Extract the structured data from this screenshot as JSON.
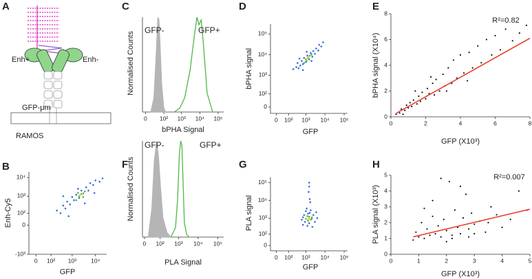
{
  "diagram": {
    "panel_label": "A",
    "labels": {
      "enh_plus": "Enh+",
      "enh_minus": "Enh-",
      "receptor": "GFP-μm",
      "cell": "RAMOS"
    }
  },
  "chart_data": [
    {
      "panel_label": "B",
      "type": "scatter",
      "xlabel": "GFP",
      "ylabel": "Enh-Cy5",
      "xscale": "symlog",
      "yscale": "symlog",
      "linthresh": 30,
      "xlim": [
        -30,
        30000
      ],
      "ylim": [
        -1000,
        20000
      ],
      "xticks": [
        0,
        {
          "value": 100,
          "label": "10²"
        },
        {
          "value": 1000,
          "label": "10³"
        },
        {
          "value": 10000,
          "label": "10⁴"
        }
      ],
      "yticks": [
        {
          "value": -1000,
          "label": "-10³"
        },
        0,
        {
          "value": 100,
          "label": "10²"
        },
        {
          "value": 1000,
          "label": "10³"
        },
        {
          "value": 10000,
          "label": "10⁴"
        }
      ],
      "series": [
        {
          "color": "#3a6fd8",
          "x": [
            200,
            300,
            400,
            500,
            600,
            800,
            1000,
            1200,
            1500,
            2000,
            2500,
            3000,
            4000,
            5000,
            6000,
            8000,
            10000,
            15000,
            700,
            3500,
            1800,
            400,
            20000,
            9000
          ],
          "values": [
            150,
            100,
            300,
            200,
            500,
            350,
            900,
            600,
            1200,
            800,
            2000,
            1400,
            3000,
            2000,
            5000,
            4000,
            7000,
            6000,
            60,
            400,
            2500,
            1000,
            9000,
            1500
          ]
        },
        {
          "color": "#4cb848",
          "x": [
            1500,
            2000,
            2500,
            3000,
            3500,
            1800
          ],
          "values": [
            600,
            1000,
            1300,
            900,
            1800,
            1500
          ]
        },
        {
          "color": "#e8d42a",
          "x": [
            2200,
            2800
          ],
          "values": [
            1100,
            1300
          ]
        }
      ]
    },
    {
      "panel_label": "C",
      "type": "line",
      "xlabel": "bPHA Signal",
      "ylabel": "Normalised Counts",
      "xscale": "symlog",
      "linthresh": 11,
      "xlim": [
        -5,
        200000
      ],
      "ylim": [
        0,
        100
      ],
      "xticks": [
        0,
        {
          "value": 100,
          "label": "10²"
        },
        {
          "value": 1000,
          "label": "10³"
        },
        {
          "value": 10000,
          "label": "10⁴"
        },
        {
          "value": 100000,
          "label": "10⁵"
        }
      ],
      "series": [
        {
          "name": "GFP-",
          "color": "#b5b5b5",
          "filled": true,
          "x": [
            10,
            20,
            30,
            40,
            50,
            60,
            75,
            100,
            130
          ],
          "values": [
            0,
            15,
            60,
            100,
            98,
            70,
            30,
            5,
            0
          ]
        },
        {
          "name": "GFP+",
          "color": "#4cb848",
          "filled": false,
          "x": [
            400,
            800,
            1500,
            3000,
            5000,
            7000,
            9000,
            12000,
            16000,
            25000,
            50000
          ],
          "values": [
            0,
            4,
            15,
            45,
            80,
            100,
            92,
            97,
            70,
            20,
            0
          ]
        }
      ]
    },
    {
      "panel_label": "D",
      "type": "scatter",
      "xlabel": "GFP",
      "ylabel": "bPHA signal",
      "xscale": "symlog",
      "yscale": "symlog",
      "linthresh": 30,
      "xlim": [
        -30,
        150000
      ],
      "ylim": [
        -30,
        300000
      ],
      "xticks": [
        0,
        {
          "value": 100,
          "label": "10²"
        },
        {
          "value": 1000,
          "label": "10³"
        },
        {
          "value": 10000,
          "label": "10⁴"
        },
        {
          "value": 100000,
          "label": "10⁵"
        }
      ],
      "yticks": [
        0,
        {
          "value": 100,
          "label": "10²"
        },
        {
          "value": 1000,
          "label": "10³"
        },
        {
          "value": 10000,
          "label": "10⁴"
        },
        {
          "value": 100000,
          "label": "10⁵"
        }
      ],
      "series": [
        {
          "color": "#3a6fd8",
          "x": [
            200,
            300,
            400,
            350,
            500,
            600,
            700,
            800,
            1000,
            1200,
            1500,
            1800,
            2200,
            2500,
            3000,
            3500,
            4500,
            5000,
            6500,
            8000,
            450,
            2000,
            1100,
            700
          ],
          "values": [
            2000,
            2500,
            2200,
            4000,
            3000,
            5000,
            3500,
            7000,
            4500,
            9000,
            6000,
            12000,
            8000,
            15000,
            11000,
            20000,
            16000,
            30000,
            25000,
            40000,
            6500,
            5000,
            14000,
            1800
          ]
        },
        {
          "color": "#4cb848",
          "x": [
            800,
            1000,
            1300,
            1600,
            1100,
            2000
          ],
          "values": [
            4000,
            6000,
            7000,
            9000,
            5000,
            10000
          ]
        },
        {
          "color": "#e8d42a",
          "x": [
            1100,
            1300,
            1500
          ],
          "values": [
            6000,
            7500,
            8000
          ]
        }
      ]
    },
    {
      "panel_label": "E",
      "type": "scatter",
      "xlabel": "GFP (X10³)",
      "ylabel": "bPHA signal (X10⁴)",
      "xlim": [
        0,
        8
      ],
      "ylim": [
        0,
        8
      ],
      "xticks": [
        0,
        2,
        4,
        6,
        8
      ],
      "yticks": [
        0,
        2,
        4,
        6,
        8
      ],
      "series": [
        {
          "color": "#111111",
          "x": [
            0.3,
            0.5,
            0.6,
            0.8,
            0.9,
            1.0,
            1.1,
            1.2,
            1.3,
            1.5,
            1.6,
            1.7,
            1.8,
            2.0,
            2.1,
            2.2,
            2.4,
            2.5,
            2.6,
            2.8,
            3.0,
            3.1,
            3.3,
            3.5,
            3.6,
            3.8,
            4.0,
            4.2,
            4.5,
            4.7,
            5.0,
            5.2,
            5.5,
            5.8,
            6.0,
            6.3,
            6.6,
            7.0,
            7.4,
            7.8,
            1.4,
            2.3,
            3.2,
            4.4,
            0.7
          ],
          "values": [
            0.2,
            0.3,
            0.6,
            0.5,
            0.9,
            0.7,
            1.1,
            0.8,
            1.3,
            1.0,
            1.6,
            1.2,
            1.9,
            1.4,
            2.2,
            1.8,
            2.6,
            1.7,
            2.9,
            2.0,
            3.3,
            2.4,
            3.8,
            2.6,
            4.4,
            3.0,
            4.8,
            3.4,
            5.0,
            3.8,
            5.5,
            4.2,
            6.0,
            4.8,
            6.3,
            5.2,
            6.8,
            5.9,
            6.5,
            7.1,
            2.0,
            3.1,
            2.0,
            2.8,
            0.2
          ]
        }
      ],
      "fit": {
        "color": "#e8402c",
        "x": [
          0.3,
          8
        ],
        "y": [
          0.27,
          6.1
        ]
      },
      "annotation": "R²=0.82"
    },
    {
      "panel_label": "F",
      "type": "line",
      "xlabel": "PLA Signal",
      "ylabel": "Normalised Counts",
      "xscale": "symlog",
      "linthresh": 19,
      "xlim": [
        -5,
        200000
      ],
      "ylim": [
        0,
        100
      ],
      "xticks": [
        0,
        {
          "value": 100,
          "label": "10²"
        },
        {
          "value": 1000,
          "label": "10³"
        },
        {
          "value": 10000,
          "label": "10⁴"
        },
        {
          "value": 100000,
          "label": "10⁵"
        }
      ],
      "series": [
        {
          "name": "GFP-",
          "color": "#b5b5b5",
          "filled": true,
          "x": [
            10,
            25,
            40,
            60,
            80,
            110,
            150,
            250,
            400
          ],
          "values": [
            0,
            30,
            80,
            100,
            85,
            50,
            20,
            5,
            0
          ]
        },
        {
          "name": "GFP+",
          "color": "#4cb848",
          "filled": false,
          "x": [
            400,
            700,
            900,
            1100,
            1300,
            1500,
            1700,
            2000,
            2600,
            3500
          ],
          "values": [
            0,
            10,
            40,
            85,
            100,
            95,
            60,
            15,
            3,
            0
          ]
        }
      ]
    },
    {
      "panel_label": "G",
      "type": "scatter",
      "xlabel": "GFP",
      "ylabel": "PLA signal",
      "xscale": "symlog",
      "yscale": "symlog",
      "linthresh": 30,
      "xlim": [
        -30,
        150000
      ],
      "ylim": [
        -30,
        200000
      ],
      "xticks": [
        0,
        {
          "value": 100,
          "label": "10²"
        },
        {
          "value": 1000,
          "label": "10³"
        },
        {
          "value": 10000,
          "label": "10⁴"
        },
        {
          "value": 100000,
          "label": "10⁵"
        }
      ],
      "yticks": [
        0,
        {
          "value": 100,
          "label": "10²"
        },
        {
          "value": 1000,
          "label": "10³"
        },
        {
          "value": 10000,
          "label": "10⁴"
        },
        {
          "value": 100000,
          "label": "10⁵"
        }
      ],
      "series": [
        {
          "color": "#3a6fd8",
          "x": [
            600,
            700,
            800,
            900,
            1000,
            1200,
            1300,
            1500,
            1800,
            2000,
            2500,
            3000,
            3500,
            4000,
            1100,
            2200,
            1600,
            700,
            1400,
            1600,
            1500,
            1700,
            1500
          ],
          "values": [
            800,
            400,
            1500,
            600,
            2500,
            350,
            1800,
            500,
            2800,
            900,
            1500,
            600,
            2200,
            1000,
            3500,
            300,
            2000,
            1100,
            30000,
            12000,
            60000,
            8000,
            100000
          ]
        },
        {
          "color": "#4cb848",
          "x": [
            1000,
            1300,
            1500,
            1800,
            1200,
            2100
          ],
          "values": [
            900,
            700,
            1200,
            800,
            1300,
            1100
          ]
        },
        {
          "color": "#e8d42a",
          "x": [
            1300,
            1500,
            1700
          ],
          "values": [
            900,
            1000,
            900
          ]
        }
      ]
    },
    {
      "panel_label": "H",
      "type": "scatter",
      "xlabel": "GFP (X10³)",
      "ylabel": "PLA signal (X10³)",
      "xlim": [
        0,
        5
      ],
      "ylim": [
        0,
        5
      ],
      "xticks": [
        0,
        1,
        2,
        3,
        4,
        5
      ],
      "yticks": [
        0,
        1,
        2,
        3,
        4,
        5
      ],
      "series": [
        {
          "color": "#111111",
          "x": [
            0.8,
            0.9,
            1.0,
            1.1,
            1.2,
            1.3,
            1.4,
            1.5,
            1.6,
            1.7,
            1.8,
            1.9,
            2.0,
            2.1,
            2.2,
            2.3,
            2.4,
            2.5,
            2.6,
            2.7,
            2.8,
            2.9,
            3.0,
            3.2,
            3.4,
            3.6,
            3.8,
            4.0,
            4.3,
            4.6,
            4.9,
            1.5,
            2.0,
            2.5,
            3.0,
            1.2,
            2.2,
            3.5,
            1.8,
            2.8
          ],
          "values": [
            0.9,
            1.4,
            1.1,
            2.0,
            1.0,
            1.6,
            1.2,
            2.4,
            1.3,
            1.8,
            1.1,
            2.2,
            1.5,
            4.6,
            1.2,
            2.8,
            1.7,
            1.3,
            2.3,
            3.8,
            1.6,
            2.6,
            1.9,
            2.1,
            1.4,
            3.0,
            2.5,
            1.7,
            2.2,
            4.0,
            2.8,
            3.4,
            0.8,
            4.3,
            1.3,
            2.9,
            1.0,
            2.0,
            4.8,
            1.1
          ]
        }
      ],
      "fit": {
        "color": "#e8402c",
        "x": [
          0.8,
          5
        ],
        "y": [
          1.1,
          2.85
        ]
      },
      "annotation": "R²=0.007"
    }
  ]
}
